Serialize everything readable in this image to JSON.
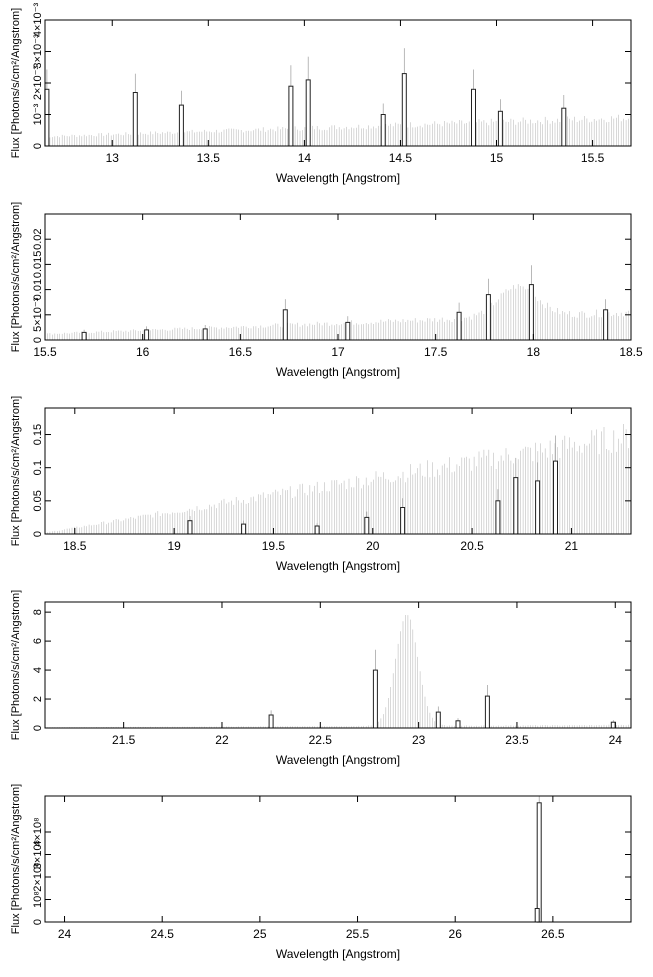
{
  "chart_data": [
    {
      "type": "bar",
      "xlabel": "Wavelength [Angstrom]",
      "ylabel": "Flux [Photons/s/cm²/Angstrom]",
      "xlim": [
        12.65,
        15.7
      ],
      "ylim": [
        0,
        0.004
      ],
      "xticks": [
        13,
        13.5,
        14,
        14.5,
        15,
        15.5
      ],
      "xtick_labels": [
        "13",
        "13.5",
        "14",
        "14.5",
        "15",
        "15.5"
      ],
      "yticks": [
        0,
        0.001,
        0.002,
        0.003,
        0.004
      ],
      "ytick_labels": [
        "0",
        "10⁻³",
        "2×10⁻³",
        "3×10⁻³",
        "4×10⁻³"
      ],
      "lines": [
        {
          "x": 12.66,
          "y": 0.0018
        },
        {
          "x": 13.12,
          "y": 0.0017
        },
        {
          "x": 13.36,
          "y": 0.0013
        },
        {
          "x": 13.93,
          "y": 0.0019
        },
        {
          "x": 14.02,
          "y": 0.0021
        },
        {
          "x": 14.41,
          "y": 0.001
        },
        {
          "x": 14.52,
          "y": 0.0023
        },
        {
          "x": 14.88,
          "y": 0.0018
        },
        {
          "x": 15.02,
          "y": 0.0011
        },
        {
          "x": 15.35,
          "y": 0.0012
        }
      ],
      "continuum": {
        "start": 0.0003,
        "end": 0.0009
      }
    },
    {
      "type": "bar",
      "xlabel": "Wavelength [Angstrom]",
      "ylabel": "Flux [Photons/s/cm²/Angstrom]",
      "xlim": [
        15.5,
        18.5
      ],
      "ylim": [
        0,
        0.025
      ],
      "xticks": [
        15.5,
        16,
        16.5,
        17,
        17.5,
        18,
        18.5
      ],
      "xtick_labels": [
        "15.5",
        "16",
        "16.5",
        "17",
        "17.5",
        "18",
        "18.5"
      ],
      "yticks": [
        0,
        0.005,
        0.01,
        0.015,
        0.02
      ],
      "ytick_labels": [
        "0",
        "5×10⁻³",
        "0.01",
        "0.015",
        "0.02"
      ],
      "lines": [
        {
          "x": 15.7,
          "y": 0.0015
        },
        {
          "x": 16.02,
          "y": 0.002
        },
        {
          "x": 16.32,
          "y": 0.0022
        },
        {
          "x": 16.73,
          "y": 0.006
        },
        {
          "x": 17.05,
          "y": 0.0035
        },
        {
          "x": 17.62,
          "y": 0.0055
        },
        {
          "x": 17.77,
          "y": 0.009
        },
        {
          "x": 17.99,
          "y": 0.011
        },
        {
          "x": 18.37,
          "y": 0.006
        }
      ],
      "continuum": {
        "start": 0.0012,
        "end": 0.0055
      },
      "hump": {
        "center": 17.92,
        "width": 0.14,
        "height": 0.006
      }
    },
    {
      "type": "bar",
      "xlabel": "Wavelength [Angstrom]",
      "ylabel": "Flux [Photons/s/cm²/Angstrom]",
      "xlim": [
        18.35,
        21.3
      ],
      "ylim": [
        0,
        0.19
      ],
      "xticks": [
        18.5,
        19,
        19.5,
        20,
        20.5,
        21
      ],
      "xtick_labels": [
        "18.5",
        "19",
        "19.5",
        "20",
        "20.5",
        "21"
      ],
      "yticks": [
        0,
        0.05,
        0.1,
        0.15
      ],
      "ytick_labels": [
        "0",
        "0.05",
        "0.1",
        "0.15"
      ],
      "lines": [
        {
          "x": 19.08,
          "y": 0.02
        },
        {
          "x": 19.35,
          "y": 0.015
        },
        {
          "x": 19.72,
          "y": 0.012
        },
        {
          "x": 19.97,
          "y": 0.025
        },
        {
          "x": 20.15,
          "y": 0.04
        },
        {
          "x": 20.63,
          "y": 0.05
        },
        {
          "x": 20.72,
          "y": 0.085
        },
        {
          "x": 20.83,
          "y": 0.08
        },
        {
          "x": 20.92,
          "y": 0.11
        }
      ],
      "continuum": {
        "start": 0.002,
        "end": 0.148
      }
    },
    {
      "type": "bar",
      "xlabel": "Wavelength [Angstrom]",
      "ylabel": "Flux [Photons/s/cm²/Angstrom]",
      "xlim": [
        21.1,
        24.08
      ],
      "ylim": [
        0,
        8.7
      ],
      "xticks": [
        21.5,
        22,
        22.5,
        23,
        23.5,
        24
      ],
      "xtick_labels": [
        "21.5",
        "22",
        "22.5",
        "23",
        "23.5",
        "24"
      ],
      "yticks": [
        0,
        2,
        4,
        6,
        8
      ],
      "ytick_labels": [
        "0",
        "2",
        "4",
        "6",
        "8"
      ],
      "lines": [
        {
          "x": 22.25,
          "y": 0.9
        },
        {
          "x": 22.78,
          "y": 4.0
        },
        {
          "x": 23.1,
          "y": 1.1
        },
        {
          "x": 23.2,
          "y": 0.5
        },
        {
          "x": 23.35,
          "y": 2.2
        },
        {
          "x": 23.99,
          "y": 0.4
        }
      ],
      "continuum": {
        "start": 0.05,
        "end": 0.2
      },
      "hump": {
        "center": 22.94,
        "width": 0.08,
        "height": 7.7
      }
    },
    {
      "type": "bar",
      "xlabel": "Wavelength [Angstrom]",
      "ylabel": "Flux [Photons/s/cm²/Angstrom]",
      "xlim": [
        23.9,
        26.9
      ],
      "ylim": [
        0,
        560000000
      ],
      "xticks": [
        24,
        24.5,
        25,
        25.5,
        26,
        26.5
      ],
      "xtick_labels": [
        "24",
        "24.5",
        "25",
        "25.5",
        "26",
        "26.5"
      ],
      "yticks": [
        0,
        100000000,
        200000000,
        300000000,
        400000000
      ],
      "ytick_labels": [
        "0",
        "10⁸",
        "2×10⁸",
        "3×10⁸",
        "4×10⁸"
      ],
      "lines": [
        {
          "x": 26.43,
          "y": 530000000
        },
        {
          "x": 26.42,
          "y": 60000000
        }
      ],
      "continuum": {
        "start": 0,
        "end": 0
      }
    }
  ]
}
